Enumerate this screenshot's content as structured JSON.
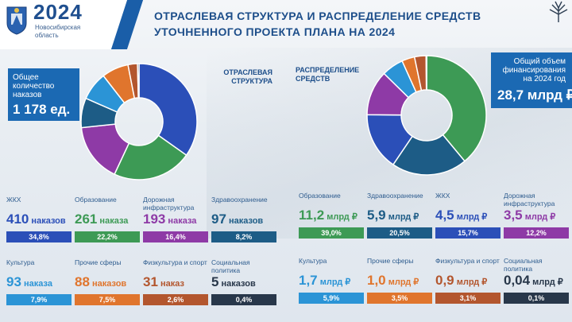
{
  "header": {
    "year": "2024",
    "region": [
      "Новосибирская",
      "область"
    ],
    "title_lines": [
      "ОТРАСЛЕВАЯ СТРУКТУРА И РАСПРЕДЕЛЕНИЕ СРЕДСТВ",
      "УТОЧНЕННОГО ПРОЕКТА ПЛАНА НА 2024"
    ]
  },
  "left_box": {
    "label_lines": [
      "Общее",
      "количество",
      "наказов"
    ],
    "value": "1 178 ед."
  },
  "right_box": {
    "label_lines": [
      "Общий объем",
      "финансирования",
      "на 2024 год"
    ],
    "value": "28,7 млрд ₽"
  },
  "section_labels": {
    "left": [
      "ОТРАСЛЕВАЯ",
      "СТРУКТУРА"
    ],
    "right": [
      "РАСПРЕДЕЛЕНИЕ",
      "СРЕДСТВ"
    ]
  },
  "colors": {
    "zhkh": "#2b4fb8",
    "education": "#3d9a55",
    "roads": "#8e3aa6",
    "health": "#1d5c86",
    "culture": "#2b94d6",
    "other": "#e0752d",
    "sport": "#b3562e",
    "social": "#28374a"
  },
  "chart_data": [
    {
      "type": "pie",
      "title": "ОТРАСЛЕВАЯ СТРУКТУРА",
      "categories": [
        "ЖКХ",
        "Образование",
        "Дорожная инфраструктура",
        "Здравоохранение",
        "Культура",
        "Прочие сферы",
        "Физкультура и спорт",
        "Социальная политика"
      ],
      "values": [
        410,
        261,
        193,
        97,
        93,
        88,
        31,
        5
      ],
      "value_labels": [
        "410",
        "261",
        "193",
        "97",
        "93",
        "88",
        "31",
        "5"
      ],
      "units": [
        "наказов",
        "наказа",
        "наказа",
        "наказов",
        "наказа",
        "наказов",
        "наказ",
        "наказов"
      ],
      "percents": [
        "34,8%",
        "22,2%",
        "16,4%",
        "8,2%",
        "7,9%",
        "7,5%",
        "2,6%",
        "0,4%"
      ],
      "color_keys": [
        "zhkh",
        "education",
        "roads",
        "health",
        "culture",
        "other",
        "sport",
        "social"
      ]
    },
    {
      "type": "pie",
      "title": "РАСПРЕДЕЛЕНИЕ СРЕДСТВ",
      "categories": [
        "Образование",
        "Здравоохранение",
        "ЖКХ",
        "Дорожная инфраструктура",
        "Культура",
        "Прочие сферы",
        "Физкультура и спорт",
        "Социальная политика"
      ],
      "values": [
        11.2,
        5.9,
        4.5,
        3.5,
        1.7,
        1.0,
        0.9,
        0.04
      ],
      "value_labels": [
        "11,2",
        "5,9",
        "4,5",
        "3,5",
        "1,7",
        "1,0",
        "0,9",
        "0,04"
      ],
      "units": [
        "млрд ₽",
        "млрд ₽",
        "млрд ₽",
        "млрд ₽",
        "млрд ₽",
        "млрд ₽",
        "млрд ₽",
        "млрд ₽"
      ],
      "percents": [
        "39,0%",
        "20,5%",
        "15,7%",
        "12,2%",
        "5,9%",
        "3,5%",
        "3,1%",
        "0,1%"
      ],
      "color_keys": [
        "education",
        "health",
        "zhkh",
        "roads",
        "culture",
        "other",
        "sport",
        "social"
      ]
    }
  ]
}
